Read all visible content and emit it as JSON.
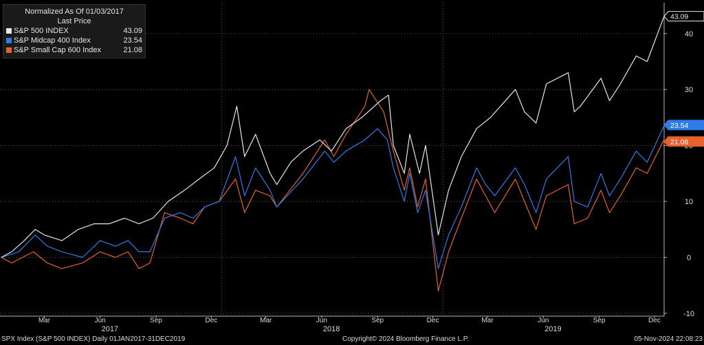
{
  "legend": {
    "title": "Normalized As Of 01/03/2017",
    "subtitle": "Last Price"
  },
  "footer": {
    "left": "SPX Index (S&P 500 INDEX)  Daily 01JAN2017-31DEC2019",
    "center": "Copyright© 2024 Bloomberg Finance L.P.",
    "right": "05-Nov-2024 22:08:23"
  },
  "chart_data": {
    "type": "line",
    "y_ticks": [
      -10,
      0,
      10,
      20,
      30,
      40
    ],
    "ylim": [
      -10.5,
      45.5
    ],
    "xlim": [
      "2017-01-01",
      "2019-12-31"
    ],
    "month_ticks": [
      {
        "date": "2017-03-15",
        "label": "Mar"
      },
      {
        "date": "2017-06-15",
        "label": "Jun"
      },
      {
        "date": "2017-09-15",
        "label": "Sep"
      },
      {
        "date": "2017-12-15",
        "label": "Dec"
      },
      {
        "date": "2018-03-15",
        "label": "Mar"
      },
      {
        "date": "2018-06-15",
        "label": "Jun"
      },
      {
        "date": "2018-09-15",
        "label": "Sep"
      },
      {
        "date": "2018-12-15",
        "label": "Dec"
      },
      {
        "date": "2019-03-15",
        "label": "Mar"
      },
      {
        "date": "2019-06-15",
        "label": "Jun"
      },
      {
        "date": "2019-09-15",
        "label": "Sep"
      },
      {
        "date": "2019-12-15",
        "label": "Dec"
      }
    ],
    "year_labels": [
      {
        "date": "2017-07-01",
        "label": "2017"
      },
      {
        "date": "2018-07-01",
        "label": "2018"
      },
      {
        "date": "2019-07-01",
        "label": "2019"
      }
    ],
    "series": [
      {
        "name": "S&P 500 INDEX",
        "last": "43.09",
        "color": "#e8e8e8",
        "points": [
          [
            "2017-01-03",
            0
          ],
          [
            "2017-01-20",
            1
          ],
          [
            "2017-02-10",
            3
          ],
          [
            "2017-02-28",
            5
          ],
          [
            "2017-03-15",
            4
          ],
          [
            "2017-04-13",
            3
          ],
          [
            "2017-05-10",
            5
          ],
          [
            "2017-06-05",
            6
          ],
          [
            "2017-06-30",
            6
          ],
          [
            "2017-07-25",
            7
          ],
          [
            "2017-08-18",
            6
          ],
          [
            "2017-09-10",
            7
          ],
          [
            "2017-10-05",
            10
          ],
          [
            "2017-11-01",
            12
          ],
          [
            "2017-11-25",
            14
          ],
          [
            "2017-12-20",
            16
          ],
          [
            "2018-01-10",
            20
          ],
          [
            "2018-01-26",
            27
          ],
          [
            "2018-02-08",
            18
          ],
          [
            "2018-02-26",
            22
          ],
          [
            "2018-03-22",
            15
          ],
          [
            "2018-04-02",
            13
          ],
          [
            "2018-04-25",
            17
          ],
          [
            "2018-05-15",
            19
          ],
          [
            "2018-06-12",
            21
          ],
          [
            "2018-07-01",
            19
          ],
          [
            "2018-07-25",
            23
          ],
          [
            "2018-08-20",
            25
          ],
          [
            "2018-09-20",
            28
          ],
          [
            "2018-10-03",
            29
          ],
          [
            "2018-10-11",
            20
          ],
          [
            "2018-10-29",
            15
          ],
          [
            "2018-11-07",
            22
          ],
          [
            "2018-11-23",
            15
          ],
          [
            "2018-12-03",
            20
          ],
          [
            "2018-12-24",
            4
          ],
          [
            "2019-01-10",
            12
          ],
          [
            "2019-01-31",
            18
          ],
          [
            "2019-02-25",
            23
          ],
          [
            "2019-03-20",
            25
          ],
          [
            "2019-04-30",
            30
          ],
          [
            "2019-05-15",
            26
          ],
          [
            "2019-06-03",
            24
          ],
          [
            "2019-06-20",
            31
          ],
          [
            "2019-07-26",
            33
          ],
          [
            "2019-08-05",
            26
          ],
          [
            "2019-08-15",
            27
          ],
          [
            "2019-09-18",
            32
          ],
          [
            "2019-10-02",
            28
          ],
          [
            "2019-10-20",
            31
          ],
          [
            "2019-11-15",
            36
          ],
          [
            "2019-12-03",
            35
          ],
          [
            "2019-12-31",
            43.09
          ]
        ]
      },
      {
        "name": "S&P Midcap 400 Index",
        "last": "23.54",
        "color": "#2f7be8",
        "points": [
          [
            "2017-01-03",
            0
          ],
          [
            "2017-02-01",
            1
          ],
          [
            "2017-02-28",
            4
          ],
          [
            "2017-03-20",
            2
          ],
          [
            "2017-04-13",
            1
          ],
          [
            "2017-05-17",
            0
          ],
          [
            "2017-06-15",
            3
          ],
          [
            "2017-07-10",
            2
          ],
          [
            "2017-07-31",
            3
          ],
          [
            "2017-08-18",
            1
          ],
          [
            "2017-09-05",
            1
          ],
          [
            "2017-09-29",
            7
          ],
          [
            "2017-10-25",
            8
          ],
          [
            "2017-11-15",
            7
          ],
          [
            "2017-12-04",
            9
          ],
          [
            "2017-12-28",
            10
          ],
          [
            "2018-01-24",
            18
          ],
          [
            "2018-02-08",
            11
          ],
          [
            "2018-02-26",
            16
          ],
          [
            "2018-03-22",
            12
          ],
          [
            "2018-04-02",
            9
          ],
          [
            "2018-05-15",
            14
          ],
          [
            "2018-06-20",
            19
          ],
          [
            "2018-07-05",
            17
          ],
          [
            "2018-07-25",
            19
          ],
          [
            "2018-08-25",
            21
          ],
          [
            "2018-09-15",
            23
          ],
          [
            "2018-10-01",
            21
          ],
          [
            "2018-10-11",
            16
          ],
          [
            "2018-10-29",
            10
          ],
          [
            "2018-11-07",
            15
          ],
          [
            "2018-11-20",
            8
          ],
          [
            "2018-12-03",
            12
          ],
          [
            "2018-12-24",
            -2
          ],
          [
            "2019-01-10",
            4
          ],
          [
            "2019-01-31",
            9
          ],
          [
            "2019-02-25",
            16
          ],
          [
            "2019-03-12",
            13
          ],
          [
            "2019-03-27",
            11
          ],
          [
            "2019-04-30",
            16
          ],
          [
            "2019-05-15",
            13
          ],
          [
            "2019-06-03",
            8
          ],
          [
            "2019-06-20",
            14
          ],
          [
            "2019-07-26",
            18
          ],
          [
            "2019-08-05",
            10
          ],
          [
            "2019-08-27",
            9
          ],
          [
            "2019-09-18",
            15
          ],
          [
            "2019-10-02",
            11
          ],
          [
            "2019-10-20",
            14
          ],
          [
            "2019-11-15",
            19
          ],
          [
            "2019-12-03",
            17
          ],
          [
            "2019-12-31",
            23.54
          ]
        ]
      },
      {
        "name": "S&P Small Cap 600 Index",
        "last": "21.08",
        "color": "#e8602c",
        "points": [
          [
            "2017-01-03",
            0
          ],
          [
            "2017-01-20",
            -1
          ],
          [
            "2017-02-25",
            1
          ],
          [
            "2017-03-20",
            -1
          ],
          [
            "2017-04-13",
            -2
          ],
          [
            "2017-05-17",
            -1
          ],
          [
            "2017-06-15",
            1
          ],
          [
            "2017-07-10",
            0
          ],
          [
            "2017-07-31",
            1
          ],
          [
            "2017-08-18",
            -2
          ],
          [
            "2017-09-05",
            -1
          ],
          [
            "2017-09-29",
            8
          ],
          [
            "2017-10-25",
            7
          ],
          [
            "2017-11-15",
            6
          ],
          [
            "2017-12-04",
            9
          ],
          [
            "2017-12-28",
            10
          ],
          [
            "2018-01-24",
            14
          ],
          [
            "2018-02-08",
            8
          ],
          [
            "2018-02-26",
            12
          ],
          [
            "2018-03-22",
            11
          ],
          [
            "2018-04-02",
            9
          ],
          [
            "2018-05-15",
            15
          ],
          [
            "2018-06-20",
            21
          ],
          [
            "2018-07-05",
            18
          ],
          [
            "2018-07-25",
            22
          ],
          [
            "2018-08-25",
            27
          ],
          [
            "2018-09-01",
            30
          ],
          [
            "2018-09-25",
            26
          ],
          [
            "2018-10-11",
            19
          ],
          [
            "2018-10-29",
            12
          ],
          [
            "2018-11-07",
            16
          ],
          [
            "2018-11-20",
            9
          ],
          [
            "2018-12-03",
            14
          ],
          [
            "2018-12-24",
            -6
          ],
          [
            "2019-01-10",
            1
          ],
          [
            "2019-01-31",
            7
          ],
          [
            "2019-02-25",
            14
          ],
          [
            "2019-03-12",
            11
          ],
          [
            "2019-03-27",
            8
          ],
          [
            "2019-04-30",
            14
          ],
          [
            "2019-05-15",
            10
          ],
          [
            "2019-06-03",
            5
          ],
          [
            "2019-06-20",
            11
          ],
          [
            "2019-07-26",
            13
          ],
          [
            "2019-08-05",
            6
          ],
          [
            "2019-08-27",
            7
          ],
          [
            "2019-09-18",
            12
          ],
          [
            "2019-10-02",
            8
          ],
          [
            "2019-10-20",
            11
          ],
          [
            "2019-11-15",
            16
          ],
          [
            "2019-12-03",
            15
          ],
          [
            "2019-12-31",
            21.08
          ]
        ]
      }
    ]
  }
}
